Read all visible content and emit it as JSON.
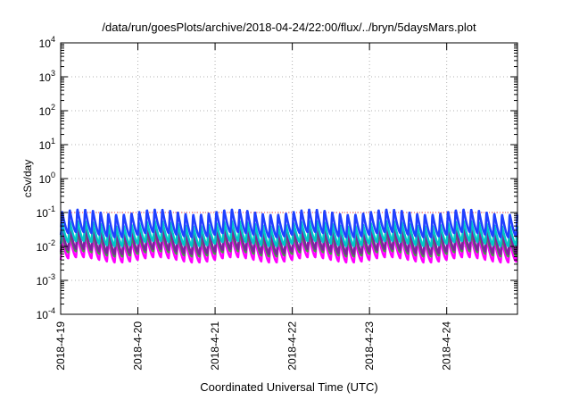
{
  "chart_data": {
    "type": "line",
    "title": "/data/run/goesPlots/archive/2018-04-24/22:00/flux/../bryn/5daysMars.plot",
    "xlabel": "Coordinated Universal Time (UTC)",
    "ylabel": "cSv/day",
    "x_range": [
      "2018-04-19T00:00",
      "2018-04-24T22:00"
    ],
    "x_ticks": [
      "2018-4-19",
      "2018-4-20",
      "2018-4-21",
      "2018-4-22",
      "2018-4-23",
      "2018-4-24"
    ],
    "y_scale": "log",
    "ylim": [
      0.0001,
      10000
    ],
    "y_ticks": [
      {
        "base": "10",
        "exp": "4"
      },
      {
        "base": "10",
        "exp": "3"
      },
      {
        "base": "10",
        "exp": "2"
      },
      {
        "base": "10",
        "exp": "1"
      },
      {
        "base": "10",
        "exp": "0"
      },
      {
        "base": "10",
        "exp": "-1"
      },
      {
        "base": "10",
        "exp": "-2"
      },
      {
        "base": "10",
        "exp": "-3"
      },
      {
        "base": "10",
        "exp": "-4"
      }
    ],
    "grid": true,
    "oscillation_period_hours": 2.4,
    "series": [
      {
        "color": "#2040ff",
        "peak": 0.11,
        "trough": 0.022
      },
      {
        "color": "#00c8c8",
        "peak": 0.05,
        "trough": 0.012
      },
      {
        "color": "#8020a0",
        "peak": 0.035,
        "trough": 0.007
      },
      {
        "color": "#40a040",
        "peak": 0.025,
        "trough": 0.006
      },
      {
        "color": "#ff00ff",
        "peak": 0.018,
        "trough": 0.004
      }
    ],
    "reference_line": {
      "color": "#ff4040",
      "value": 0.1
    }
  }
}
